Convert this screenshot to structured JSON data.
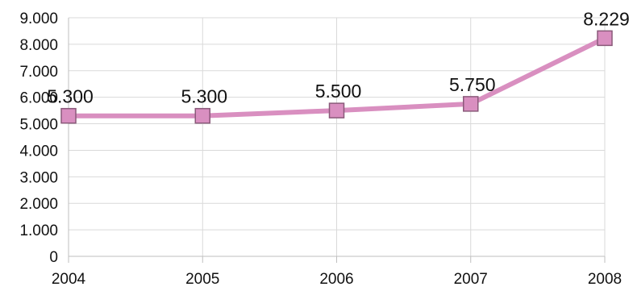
{
  "chart_data": {
    "type": "line",
    "title": "",
    "xlabel": "",
    "ylabel": "",
    "categories": [
      "2004",
      "2005",
      "2006",
      "2007",
      "2008"
    ],
    "series": [
      {
        "values": [
          5300,
          5300,
          5500,
          5750,
          8229
        ],
        "labels": [
          "5.300",
          "5.300",
          "5.500",
          "5.750",
          "8.229"
        ],
        "color": "#d98fc0",
        "marker_color": "#d98fc0",
        "marker_edge": "#8a5a7a",
        "marker": "square"
      }
    ],
    "ylim": [
      0,
      9000
    ],
    "yticks": [
      0,
      1000,
      2000,
      3000,
      4000,
      5000,
      6000,
      7000,
      8000,
      9000
    ],
    "ytick_labels": [
      "0",
      "1.000",
      "2.000",
      "3.000",
      "4.000",
      "5.000",
      "6.000",
      "7.000",
      "8.000",
      "9.000"
    ],
    "grid": true,
    "grid_color": "#d9d9d9",
    "legend": "none"
  }
}
